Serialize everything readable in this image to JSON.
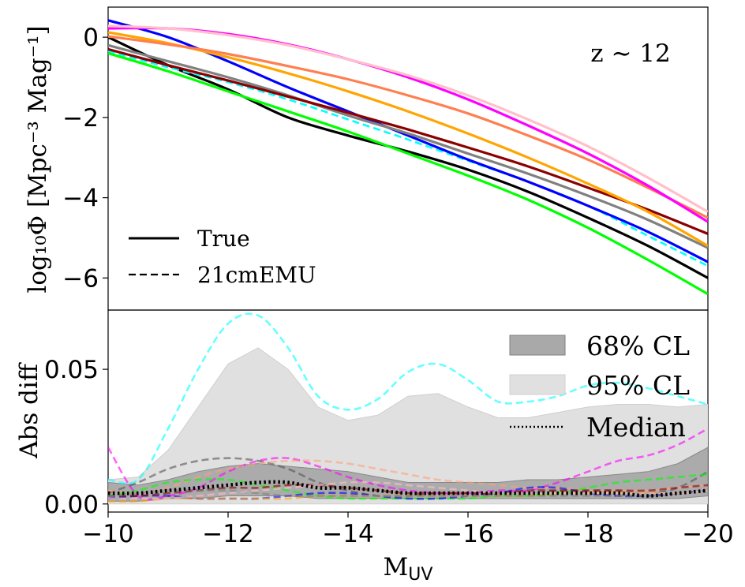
{
  "chart_data": [
    {
      "type": "line",
      "panel": "top",
      "annotation": "z ∼ 12",
      "ylabel": "log₁₀Φ [Mpc⁻³ Mag⁻¹]",
      "xlim": [
        -10,
        -20
      ],
      "ylim": [
        -6.8,
        0.75
      ],
      "yticks": [
        0,
        -2,
        -4,
        -6
      ],
      "ytick_labels": [
        "0",
        "−2",
        "−4",
        "−6"
      ],
      "legend": {
        "position": "lower-left",
        "entries": [
          {
            "label": "True",
            "style": "solid"
          },
          {
            "label": "21cmEMU",
            "style": "dashed"
          }
        ]
      },
      "x": [
        -10,
        -11,
        -12,
        -13,
        -14,
        -15,
        -16,
        -17,
        -18,
        -19,
        -20
      ],
      "series": [
        {
          "color": "#000000",
          "dash": false,
          "values": [
            0.0,
            -0.7,
            -1.3,
            -2.0,
            -2.45,
            -2.85,
            -3.3,
            -3.85,
            -4.5,
            -5.2,
            -6.0
          ]
        },
        {
          "color": "#00ffff",
          "dash": true,
          "values": [
            -0.35,
            -0.75,
            -1.12,
            -1.55,
            -2.05,
            -2.55,
            -3.08,
            -3.6,
            -4.2,
            -4.95,
            -5.7
          ]
        },
        {
          "color": "#0000ff",
          "dash": false,
          "values": [
            0.42,
            0.0,
            -0.6,
            -1.25,
            -1.85,
            -2.45,
            -3.05,
            -3.6,
            -4.2,
            -4.85,
            -5.6
          ]
        },
        {
          "color": "#00ff00",
          "dash": false,
          "values": [
            -0.4,
            -0.85,
            -1.35,
            -1.85,
            -2.35,
            -2.9,
            -3.45,
            -4.05,
            -4.75,
            -5.55,
            -6.4
          ]
        },
        {
          "color": "#808080",
          "dash": false,
          "values": [
            -0.2,
            -0.6,
            -1.0,
            -1.45,
            -1.95,
            -2.4,
            -2.9,
            -3.4,
            -3.95,
            -4.55,
            -5.25
          ]
        },
        {
          "color": "#8b0000",
          "dash": false,
          "values": [
            -0.3,
            -0.7,
            -1.08,
            -1.48,
            -1.88,
            -2.3,
            -2.75,
            -3.22,
            -3.75,
            -4.3,
            -4.9
          ]
        },
        {
          "color": "#ffa500",
          "dash": false,
          "values": [
            0.12,
            -0.15,
            -0.5,
            -0.9,
            -1.35,
            -1.85,
            -2.4,
            -3.0,
            -3.65,
            -4.35,
            -5.2
          ]
        },
        {
          "color": "#ff7f50",
          "dash": false,
          "values": [
            0.02,
            -0.18,
            -0.42,
            -0.72,
            -1.05,
            -1.45,
            -1.9,
            -2.45,
            -3.05,
            -3.75,
            -4.5
          ]
        },
        {
          "color": "#ff00ff",
          "dash": false,
          "values": [
            0.22,
            0.22,
            0.08,
            -0.18,
            -0.55,
            -1.0,
            -1.55,
            -2.2,
            -2.9,
            -3.7,
            -4.6
          ]
        },
        {
          "color": "#ffc0cb",
          "dash": false,
          "values": [
            0.28,
            0.22,
            0.05,
            -0.2,
            -0.55,
            -0.95,
            -1.45,
            -2.05,
            -2.72,
            -3.5,
            -4.35
          ]
        }
      ]
    },
    {
      "type": "line",
      "panel": "bottom",
      "ylabel": "Abs diff",
      "xlabel_base": "M",
      "xlabel_sub": "UV",
      "xlim": [
        -10,
        -20
      ],
      "ylim": [
        -0.003,
        0.072
      ],
      "xticks": [
        -10,
        -12,
        -14,
        -16,
        -18,
        -20
      ],
      "xtick_labels": [
        "−10",
        "−12",
        "−14",
        "−16",
        "−18",
        "−20"
      ],
      "yticks": [
        0.0,
        0.05
      ],
      "ytick_labels": [
        "0.00",
        "0.05"
      ],
      "legend": {
        "position": "upper-right",
        "entries": [
          {
            "label": "68% CL",
            "kind": "band68"
          },
          {
            "label": "95% CL",
            "kind": "band95"
          },
          {
            "label": "Median",
            "kind": "dotted"
          }
        ]
      },
      "x": [
        -10,
        -10.5,
        -11,
        -11.5,
        -12,
        -12.5,
        -13,
        -13.5,
        -14,
        -14.5,
        -15,
        -15.5,
        -16,
        -16.5,
        -17,
        -17.5,
        -18,
        -18.5,
        -19,
        -19.5,
        -20
      ],
      "band95_upper": [
        0.009,
        0.01,
        0.02,
        0.036,
        0.052,
        0.058,
        0.05,
        0.036,
        0.031,
        0.033,
        0.04,
        0.041,
        0.036,
        0.032,
        0.032,
        0.034,
        0.036,
        0.037,
        0.037,
        0.036,
        0.037
      ],
      "band95_lower": [
        0.0,
        0.0,
        0.0,
        0.0,
        0.0,
        0.0,
        0.0,
        0.0,
        0.0,
        0.0,
        0.0,
        0.0,
        0.0,
        0.0,
        0.0,
        0.0,
        0.0,
        0.0,
        0.0,
        0.0,
        0.0
      ],
      "band68_upper": [
        0.008,
        0.007,
        0.009,
        0.012,
        0.014,
        0.015,
        0.014,
        0.013,
        0.012,
        0.01,
        0.008,
        0.008,
        0.008,
        0.008,
        0.009,
        0.009,
        0.01,
        0.011,
        0.012,
        0.015,
        0.021
      ],
      "band68_lower": [
        0.001,
        0.001,
        0.002,
        0.002,
        0.003,
        0.003,
        0.003,
        0.002,
        0.002,
        0.002,
        0.002,
        0.002,
        0.002,
        0.002,
        0.002,
        0.002,
        0.002,
        0.002,
        0.002,
        0.002,
        0.003
      ],
      "median": [
        0.004,
        0.004,
        0.005,
        0.006,
        0.007,
        0.008,
        0.008,
        0.006,
        0.006,
        0.005,
        0.004,
        0.004,
        0.004,
        0.004,
        0.004,
        0.004,
        0.004,
        0.004,
        0.003,
        0.004,
        0.005
      ],
      "series": [
        {
          "color": "#00ffff",
          "values": [
            0.009,
            0.009,
            0.028,
            0.05,
            0.067,
            0.07,
            0.058,
            0.04,
            0.035,
            0.039,
            0.049,
            0.052,
            0.046,
            0.038,
            0.038,
            0.04,
            0.044,
            0.045,
            0.043,
            0.04,
            0.037
          ]
        },
        {
          "color": "#ff00ff",
          "values": [
            0.021,
            0.003,
            0.003,
            0.006,
            0.012,
            0.016,
            0.017,
            0.014,
            0.01,
            0.007,
            0.005,
            0.004,
            0.004,
            0.005,
            0.005,
            0.008,
            0.012,
            0.016,
            0.018,
            0.022,
            0.028
          ]
        },
        {
          "color": "#555555",
          "values": [
            0.004,
            0.008,
            0.013,
            0.016,
            0.017,
            0.016,
            0.013,
            0.008,
            0.005,
            0.003,
            0.003,
            0.004,
            0.004,
            0.004,
            0.004,
            0.005,
            0.005,
            0.005,
            0.004,
            0.006,
            0.012
          ]
        },
        {
          "color": "#ffa07a",
          "values": [
            0.005,
            0.004,
            0.006,
            0.01,
            0.013,
            0.015,
            0.016,
            0.016,
            0.015,
            0.013,
            0.011,
            0.009,
            0.008,
            0.007,
            0.006,
            0.006,
            0.005,
            0.005,
            0.005,
            0.006,
            0.007
          ]
        },
        {
          "color": "#00ff00",
          "values": [
            0.003,
            0.005,
            0.008,
            0.009,
            0.009,
            0.007,
            0.005,
            0.003,
            0.002,
            0.002,
            0.002,
            0.002,
            0.002,
            0.003,
            0.003,
            0.004,
            0.006,
            0.008,
            0.009,
            0.01,
            0.011
          ]
        },
        {
          "color": "#0000ff",
          "values": [
            0.002,
            0.003,
            0.003,
            0.002,
            0.002,
            0.002,
            0.003,
            0.004,
            0.004,
            0.003,
            0.002,
            0.002,
            0.003,
            0.004,
            0.006,
            0.006,
            0.004,
            0.003,
            0.003,
            0.004,
            0.005
          ]
        },
        {
          "color": "#8b0000",
          "values": [
            0.003,
            0.003,
            0.004,
            0.005,
            0.006,
            0.006,
            0.007,
            0.007,
            0.006,
            0.005,
            0.004,
            0.004,
            0.004,
            0.004,
            0.005,
            0.005,
            0.005,
            0.005,
            0.005,
            0.006,
            0.007
          ]
        },
        {
          "color": "#ffa500",
          "values": [
            0.001,
            0.001,
            0.002,
            0.002,
            0.002,
            0.002,
            0.002,
            0.003,
            0.003,
            0.003,
            0.003,
            0.003,
            0.003,
            0.003,
            0.003,
            0.004,
            0.004,
            0.004,
            0.004,
            0.004,
            0.005
          ]
        },
        {
          "color": "#808080",
          "values": [
            0.003,
            0.004,
            0.005,
            0.005,
            0.005,
            0.004,
            0.003,
            0.003,
            0.003,
            0.003,
            0.003,
            0.003,
            0.003,
            0.003,
            0.003,
            0.003,
            0.003,
            0.003,
            0.003,
            0.004,
            0.005
          ]
        },
        {
          "color": "#ffc0cb",
          "values": [
            0.002,
            0.002,
            0.002,
            0.003,
            0.004,
            0.005,
            0.006,
            0.007,
            0.008,
            0.008,
            0.007,
            0.006,
            0.005,
            0.004,
            0.004,
            0.004,
            0.004,
            0.004,
            0.004,
            0.004,
            0.005
          ]
        }
      ]
    }
  ]
}
